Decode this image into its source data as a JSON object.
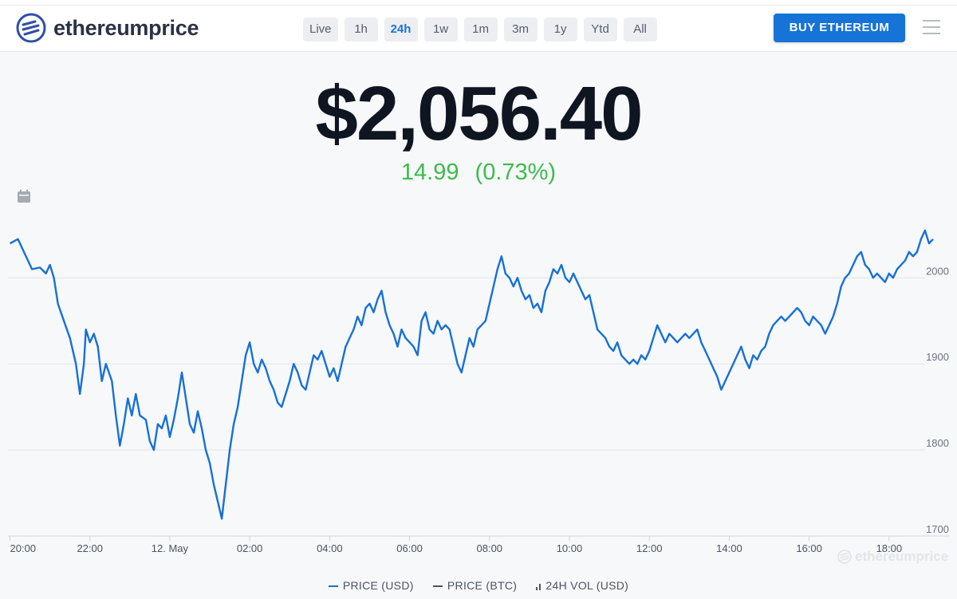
{
  "header": {
    "logo_text": "ethereumprice",
    "ranges": [
      {
        "label": "Live",
        "active": false
      },
      {
        "label": "1h",
        "active": false
      },
      {
        "label": "24h",
        "active": true
      },
      {
        "label": "1w",
        "active": false
      },
      {
        "label": "1m",
        "active": false
      },
      {
        "label": "3m",
        "active": false
      },
      {
        "label": "1y",
        "active": false
      },
      {
        "label": "Ytd",
        "active": false
      },
      {
        "label": "All",
        "active": false
      }
    ],
    "buy_label": "BUY ETHEREUM"
  },
  "price": {
    "value": "$2,056.40",
    "change_abs": "14.99",
    "change_pct": "(0.73%)"
  },
  "colors": {
    "line": "#1670d5",
    "positive": "#3dbb4d",
    "accent": "#1673d8"
  },
  "watermark": "ethereumprice",
  "legend": [
    {
      "label": "PRICE (USD)",
      "color": "#1670d5",
      "icon": "line"
    },
    {
      "label": "PRICE (BTC)",
      "color": "#555555",
      "icon": "line"
    },
    {
      "label": "24H VOL (USD)",
      "color": "#555555",
      "icon": "volume-bars-icon"
    }
  ],
  "chart_data": {
    "type": "line",
    "title": "",
    "xlabel": "",
    "ylabel": "",
    "y_ticks": [
      1700,
      1800,
      1900,
      2000
    ],
    "ylim": [
      1700,
      2080
    ],
    "x_ticks": [
      "20:00",
      "22:00",
      "12. May",
      "02:00",
      "04:00",
      "06:00",
      "08:00",
      "10:00",
      "12:00",
      "14:00",
      "16:00",
      "18:00"
    ],
    "x_tick_hours": [
      0,
      2,
      4,
      6,
      8,
      10,
      12,
      14,
      16,
      18,
      20,
      22
    ],
    "xlim_hours": [
      -0.05,
      23.5
    ],
    "grid": "horizontal",
    "legend_position": "bottom",
    "series": [
      {
        "name": "PRICE (USD)",
        "points": [
          [
            0.0,
            2040
          ],
          [
            0.2,
            2045
          ],
          [
            0.35,
            2030
          ],
          [
            0.55,
            2010
          ],
          [
            0.75,
            2012
          ],
          [
            0.9,
            2005
          ],
          [
            1.0,
            2015
          ],
          [
            1.1,
            2000
          ],
          [
            1.2,
            1970
          ],
          [
            1.35,
            1950
          ],
          [
            1.5,
            1930
          ],
          [
            1.65,
            1900
          ],
          [
            1.75,
            1865
          ],
          [
            1.85,
            1900
          ],
          [
            1.9,
            1940
          ],
          [
            2.0,
            1925
          ],
          [
            2.1,
            1935
          ],
          [
            2.2,
            1920
          ],
          [
            2.3,
            1880
          ],
          [
            2.4,
            1900
          ],
          [
            2.55,
            1880
          ],
          [
            2.65,
            1840
          ],
          [
            2.75,
            1805
          ],
          [
            2.85,
            1830
          ],
          [
            2.95,
            1860
          ],
          [
            3.05,
            1840
          ],
          [
            3.15,
            1865
          ],
          [
            3.25,
            1840
          ],
          [
            3.4,
            1835
          ],
          [
            3.5,
            1810
          ],
          [
            3.6,
            1800
          ],
          [
            3.7,
            1830
          ],
          [
            3.8,
            1825
          ],
          [
            3.9,
            1840
          ],
          [
            4.0,
            1815
          ],
          [
            4.1,
            1835
          ],
          [
            4.2,
            1860
          ],
          [
            4.3,
            1890
          ],
          [
            4.4,
            1860
          ],
          [
            4.5,
            1830
          ],
          [
            4.6,
            1820
          ],
          [
            4.7,
            1845
          ],
          [
            4.8,
            1825
          ],
          [
            4.9,
            1800
          ],
          [
            5.0,
            1785
          ],
          [
            5.1,
            1760
          ],
          [
            5.2,
            1740
          ],
          [
            5.3,
            1720
          ],
          [
            5.4,
            1760
          ],
          [
            5.5,
            1800
          ],
          [
            5.6,
            1830
          ],
          [
            5.7,
            1850
          ],
          [
            5.8,
            1880
          ],
          [
            5.9,
            1910
          ],
          [
            6.0,
            1925
          ],
          [
            6.1,
            1900
          ],
          [
            6.2,
            1890
          ],
          [
            6.3,
            1905
          ],
          [
            6.4,
            1895
          ],
          [
            6.5,
            1880
          ],
          [
            6.6,
            1870
          ],
          [
            6.7,
            1855
          ],
          [
            6.8,
            1850
          ],
          [
            6.9,
            1865
          ],
          [
            7.0,
            1880
          ],
          [
            7.1,
            1900
          ],
          [
            7.2,
            1890
          ],
          [
            7.3,
            1875
          ],
          [
            7.4,
            1870
          ],
          [
            7.5,
            1890
          ],
          [
            7.6,
            1910
          ],
          [
            7.7,
            1905
          ],
          [
            7.8,
            1915
          ],
          [
            7.9,
            1900
          ],
          [
            8.0,
            1885
          ],
          [
            8.1,
            1895
          ],
          [
            8.2,
            1880
          ],
          [
            8.3,
            1900
          ],
          [
            8.4,
            1920
          ],
          [
            8.5,
            1930
          ],
          [
            8.6,
            1940
          ],
          [
            8.7,
            1955
          ],
          [
            8.8,
            1945
          ],
          [
            8.9,
            1965
          ],
          [
            9.0,
            1970
          ],
          [
            9.1,
            1960
          ],
          [
            9.2,
            1975
          ],
          [
            9.3,
            1985
          ],
          [
            9.4,
            1960
          ],
          [
            9.5,
            1945
          ],
          [
            9.6,
            1935
          ],
          [
            9.7,
            1920
          ],
          [
            9.8,
            1940
          ],
          [
            9.9,
            1930
          ],
          [
            10.0,
            1925
          ],
          [
            10.1,
            1920
          ],
          [
            10.2,
            1910
          ],
          [
            10.3,
            1950
          ],
          [
            10.4,
            1960
          ],
          [
            10.5,
            1940
          ],
          [
            10.6,
            1935
          ],
          [
            10.7,
            1950
          ],
          [
            10.8,
            1940
          ],
          [
            10.9,
            1945
          ],
          [
            11.0,
            1940
          ],
          [
            11.1,
            1920
          ],
          [
            11.2,
            1900
          ],
          [
            11.3,
            1890
          ],
          [
            11.4,
            1910
          ],
          [
            11.5,
            1930
          ],
          [
            11.6,
            1920
          ],
          [
            11.7,
            1940
          ],
          [
            11.8,
            1945
          ],
          [
            11.9,
            1950
          ],
          [
            12.0,
            1970
          ],
          [
            12.1,
            1990
          ],
          [
            12.2,
            2010
          ],
          [
            12.3,
            2025
          ],
          [
            12.4,
            2005
          ],
          [
            12.5,
            2000
          ],
          [
            12.6,
            1990
          ],
          [
            12.7,
            2000
          ],
          [
            12.8,
            1985
          ],
          [
            12.9,
            1975
          ],
          [
            13.0,
            1980
          ],
          [
            13.1,
            1965
          ],
          [
            13.2,
            1970
          ],
          [
            13.3,
            1960
          ],
          [
            13.4,
            1985
          ],
          [
            13.5,
            1995
          ],
          [
            13.6,
            2010
          ],
          [
            13.7,
            2005
          ],
          [
            13.8,
            2015
          ],
          [
            13.9,
            2000
          ],
          [
            14.0,
            1995
          ],
          [
            14.1,
            2005
          ],
          [
            14.2,
            1995
          ],
          [
            14.3,
            1985
          ],
          [
            14.4,
            1975
          ],
          [
            14.5,
            1980
          ],
          [
            14.6,
            1960
          ],
          [
            14.7,
            1940
          ],
          [
            14.8,
            1935
          ],
          [
            14.9,
            1930
          ],
          [
            15.0,
            1920
          ],
          [
            15.1,
            1915
          ],
          [
            15.2,
            1925
          ],
          [
            15.3,
            1910
          ],
          [
            15.4,
            1905
          ],
          [
            15.5,
            1900
          ],
          [
            15.6,
            1905
          ],
          [
            15.7,
            1900
          ],
          [
            15.8,
            1910
          ],
          [
            15.9,
            1905
          ],
          [
            16.0,
            1915
          ],
          [
            16.1,
            1930
          ],
          [
            16.2,
            1945
          ],
          [
            16.3,
            1935
          ],
          [
            16.4,
            1925
          ],
          [
            16.5,
            1935
          ],
          [
            16.6,
            1930
          ],
          [
            16.7,
            1925
          ],
          [
            16.8,
            1930
          ],
          [
            16.9,
            1935
          ],
          [
            17.0,
            1930
          ],
          [
            17.1,
            1935
          ],
          [
            17.2,
            1940
          ],
          [
            17.3,
            1925
          ],
          [
            17.4,
            1915
          ],
          [
            17.5,
            1905
          ],
          [
            17.6,
            1895
          ],
          [
            17.7,
            1885
          ],
          [
            17.8,
            1870
          ],
          [
            17.9,
            1880
          ],
          [
            18.0,
            1890
          ],
          [
            18.1,
            1900
          ],
          [
            18.2,
            1910
          ],
          [
            18.3,
            1920
          ],
          [
            18.4,
            1905
          ],
          [
            18.5,
            1895
          ],
          [
            18.6,
            1910
          ],
          [
            18.7,
            1905
          ],
          [
            18.8,
            1915
          ],
          [
            18.9,
            1920
          ],
          [
            19.0,
            1935
          ],
          [
            19.1,
            1945
          ],
          [
            19.2,
            1950
          ],
          [
            19.3,
            1955
          ],
          [
            19.4,
            1950
          ],
          [
            19.5,
            1955
          ],
          [
            19.6,
            1960
          ],
          [
            19.7,
            1965
          ],
          [
            19.8,
            1960
          ],
          [
            19.9,
            1950
          ],
          [
            20.0,
            1945
          ],
          [
            20.1,
            1955
          ],
          [
            20.2,
            1950
          ],
          [
            20.3,
            1945
          ],
          [
            20.4,
            1935
          ],
          [
            20.5,
            1945
          ],
          [
            20.6,
            1955
          ],
          [
            20.7,
            1970
          ],
          [
            20.8,
            1990
          ],
          [
            20.9,
            2000
          ],
          [
            21.0,
            2005
          ],
          [
            21.1,
            2015
          ],
          [
            21.2,
            2025
          ],
          [
            21.3,
            2030
          ],
          [
            21.4,
            2015
          ],
          [
            21.5,
            2010
          ],
          [
            21.6,
            2000
          ],
          [
            21.7,
            2005
          ],
          [
            21.8,
            2000
          ],
          [
            21.9,
            1995
          ],
          [
            22.0,
            2005
          ],
          [
            22.1,
            2000
          ],
          [
            22.2,
            2010
          ],
          [
            22.3,
            2015
          ],
          [
            22.4,
            2020
          ],
          [
            22.5,
            2030
          ],
          [
            22.6,
            2025
          ],
          [
            22.7,
            2030
          ],
          [
            22.8,
            2045
          ],
          [
            22.9,
            2055
          ],
          [
            23.0,
            2040
          ],
          [
            23.1,
            2045
          ]
        ]
      }
    ]
  }
}
